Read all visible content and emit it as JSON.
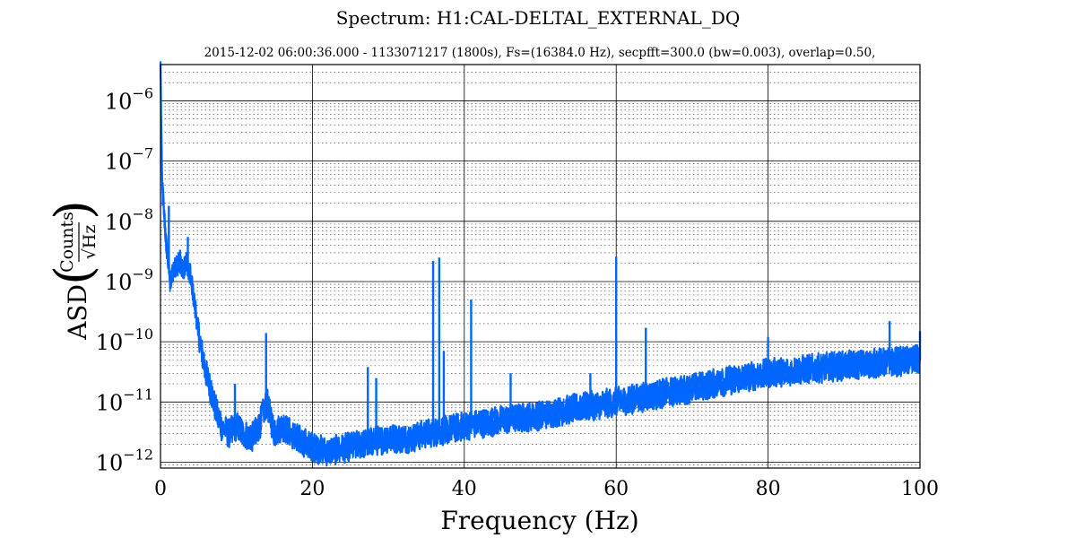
{
  "chart_data": {
    "type": "line",
    "title": "Spectrum: H1:CAL-DELTAL_EXTERNAL_DQ",
    "subtitle": "2015-12-02 06:00:36.000 - 1133071217 (1800s), Fs=(16384.0 Hz), secpfft=300.0 (bw=0.003), overlap=0.50,",
    "xlabel": "Frequency (Hz)",
    "ylabel_prefix": "ASD",
    "ylabel_numerator": "Counts",
    "ylabel_denominator": "√Hz",
    "x_scale": "linear",
    "y_scale": "log",
    "xlim": [
      0,
      100
    ],
    "ylim": [
      8e-13,
      4e-06
    ],
    "x_ticks": [
      0,
      20,
      40,
      60,
      80,
      100
    ],
    "x_tick_labels": [
      "0",
      "20",
      "40",
      "60",
      "80",
      "100"
    ],
    "y_ticks": [
      1e-12,
      1e-11,
      1e-10,
      1e-09,
      1e-08,
      1e-07,
      1e-06
    ],
    "y_tick_bases": [
      "10",
      "10",
      "10",
      "10",
      "10",
      "10",
      "10"
    ],
    "y_tick_exponents": [
      "−12",
      "−11",
      "−10",
      "−9",
      "−8",
      "−7",
      "−6"
    ],
    "grid": true,
    "series_color": "#0066ff",
    "series": [
      {
        "x": [
          0.02,
          0.1,
          0.2,
          0.3,
          0.5,
          0.7,
          1.0,
          1.3,
          1.6,
          2.0,
          2.5,
          3.0,
          3.5,
          4.0,
          4.5,
          5.0,
          5.5,
          6.0,
          6.5,
          7.0,
          7.5,
          8.0,
          9.0,
          10.0,
          11.0,
          12.0,
          13.0,
          14.0,
          15.0,
          16.0,
          18.0,
          20.0,
          22.0,
          25.0,
          28.0,
          30.0,
          33.0,
          35.0,
          38.0,
          40.0,
          45.0,
          50.0,
          55.0,
          60.0,
          65.0,
          70.0,
          75.0,
          80.0,
          85.0,
          90.0,
          95.0,
          100.0
        ],
        "y": [
          4e-06,
          3e-07,
          6e-08,
          3e-08,
          1.2e-08,
          5e-09,
          2e-09,
          1e-09,
          1.2e-09,
          1.7e-09,
          2.2e-09,
          1.6e-09,
          2e-09,
          1.2e-09,
          4e-10,
          1.5e-10,
          6e-11,
          3e-11,
          1.8e-11,
          1e-11,
          6e-12,
          4e-12,
          3e-12,
          4e-12,
          3e-12,
          2.5e-12,
          4e-12,
          1e-11,
          3e-12,
          4e-12,
          2.5e-12,
          1.8e-12,
          1.5e-12,
          1.8e-12,
          2.2e-12,
          2.5e-12,
          2.5e-12,
          3e-12,
          3.5e-12,
          4e-12,
          5e-12,
          6e-12,
          8e-12,
          1e-11,
          1.3e-11,
          1.7e-11,
          2.3e-11,
          3e-11,
          3.5e-11,
          4e-11,
          4.5e-11,
          5e-11
        ]
      }
    ],
    "lines_peaks": [
      {
        "x": 0.3,
        "y": 1.8e-08
      },
      {
        "x": 1.1,
        "y": 1.8e-08
      },
      {
        "x": 3.6,
        "y": 5.5e-09
      },
      {
        "x": 9.8,
        "y": 2e-11
      },
      {
        "x": 13.9,
        "y": 1.4e-10
      },
      {
        "x": 27.3,
        "y": 3.8e-11
      },
      {
        "x": 28.4,
        "y": 2.5e-11
      },
      {
        "x": 35.9,
        "y": 2.2e-09
      },
      {
        "x": 36.7,
        "y": 2.5e-09
      },
      {
        "x": 37.3,
        "y": 7e-11
      },
      {
        "x": 40.9,
        "y": 5e-10
      },
      {
        "x": 46.1,
        "y": 3e-11
      },
      {
        "x": 56.6,
        "y": 3e-11
      },
      {
        "x": 60.0,
        "y": 2.6e-09
      },
      {
        "x": 63.9,
        "y": 1.7e-10
      },
      {
        "x": 80.0,
        "y": 1.2e-10
      },
      {
        "x": 96.0,
        "y": 2.2e-10
      },
      {
        "x": 100.0,
        "y": 1.5e-10
      }
    ]
  }
}
